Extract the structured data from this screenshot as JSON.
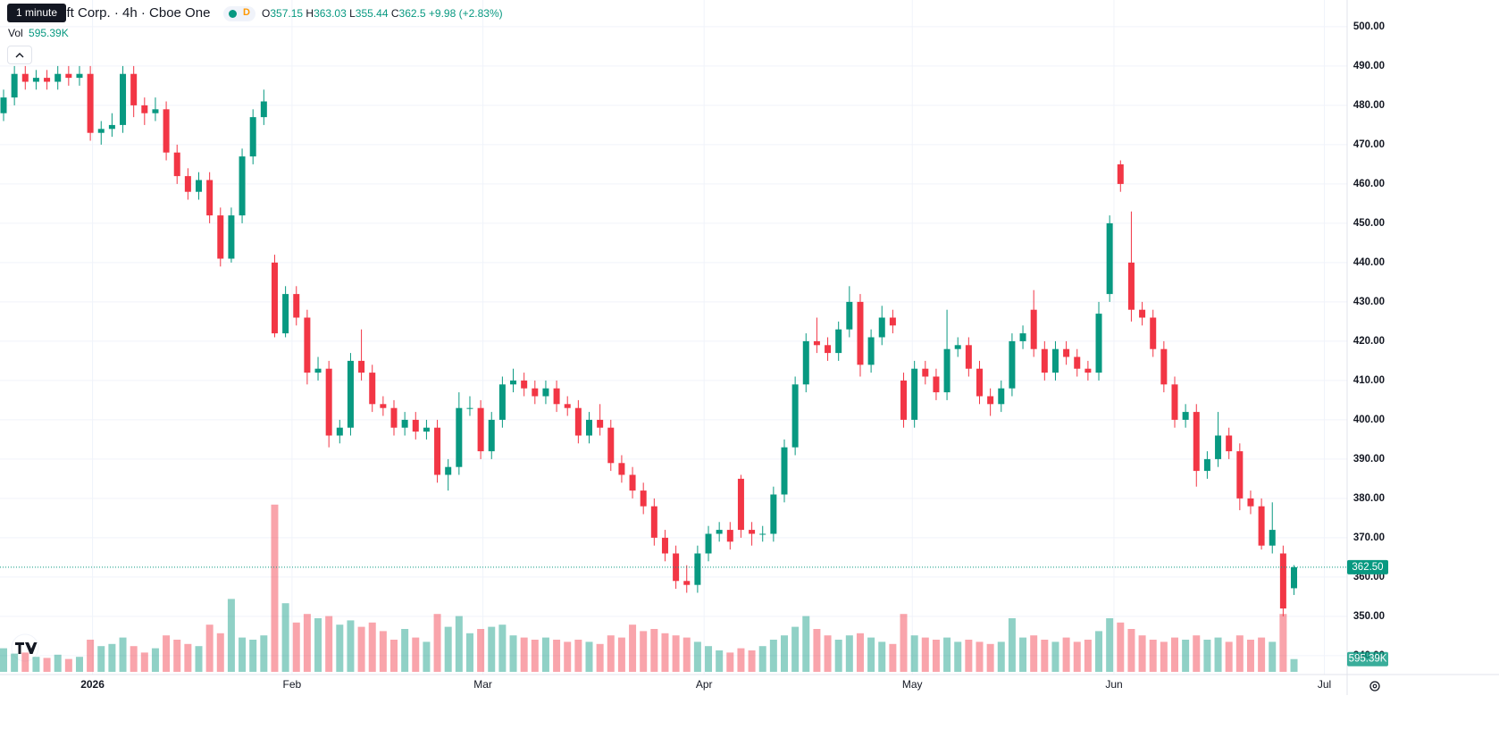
{
  "chart_data": {
    "type": "candlestick",
    "title": "Microsoft Corp. · 4h · Cboe One",
    "tooltip": "1 minute",
    "data_badge": "D",
    "ohlc_labels": [
      "O",
      "H",
      "L",
      "C"
    ],
    "change_label": "+9.98 (+2.83%)",
    "volume_label": "Vol",
    "volume_value": {
      "value": 595390,
      "label": "595.39K"
    },
    "last_price": {
      "value": 362.5,
      "label": "362.50"
    },
    "up_color": "#089981",
    "down_color": "#f23645",
    "grid": true,
    "xlim": [
      -0.33,
      123.9
    ],
    "ylim": [
      335.2,
      506.8
    ],
    "vlim": [
      0,
      10000000
    ],
    "xticks": [
      {
        "value": 8.2,
        "label": "2026"
      },
      {
        "value": 26.6,
        "label": "Feb"
      },
      {
        "value": 44.2,
        "label": "Mar"
      },
      {
        "value": 64.6,
        "label": "Apr"
      },
      {
        "value": 83.8,
        "label": "May"
      },
      {
        "value": 102.4,
        "label": "Jun"
      },
      {
        "value": 121.8,
        "label": "Jul"
      }
    ],
    "yticks": [
      {
        "value": 340,
        "label": "340.00"
      },
      {
        "value": 350,
        "label": "350.00"
      },
      {
        "value": 360,
        "label": "360.00"
      },
      {
        "value": 370,
        "label": "370.00"
      },
      {
        "value": 380,
        "label": "380.00"
      },
      {
        "value": 390,
        "label": "390.00"
      },
      {
        "value": 400,
        "label": "400.00"
      },
      {
        "value": 410,
        "label": "410.00"
      },
      {
        "value": 420,
        "label": "420.00"
      },
      {
        "value": 430,
        "label": "430.00"
      },
      {
        "value": 440,
        "label": "440.00"
      },
      {
        "value": 450,
        "label": "450.00"
      },
      {
        "value": 460,
        "label": "460.00"
      },
      {
        "value": 470,
        "label": "470.00"
      },
      {
        "value": 480,
        "label": "480.00"
      },
      {
        "value": 490,
        "label": "490.00"
      },
      {
        "value": 500,
        "label": "500.00"
      }
    ],
    "open": [
      478,
      482,
      488,
      486,
      487,
      486,
      488,
      487,
      488,
      473,
      474,
      475,
      488,
      480,
      478,
      479,
      468,
      462,
      458,
      461,
      452,
      441,
      452,
      467,
      477,
      440,
      422,
      432,
      426,
      412,
      413,
      396,
      398,
      415,
      412,
      404,
      403,
      398,
      400,
      397,
      398,
      386,
      388,
      403,
      403,
      392,
      400,
      409,
      410,
      408,
      406,
      408,
      404,
      403,
      396,
      400,
      398,
      389,
      386,
      382,
      378,
      370,
      366,
      359,
      358,
      366,
      371,
      372,
      385,
      372,
      371,
      371,
      381,
      393,
      409,
      420,
      419,
      417,
      423,
      430,
      414,
      421,
      426,
      410,
      400,
      413,
      411,
      407,
      418,
      419,
      413,
      406,
      404,
      408,
      420,
      428,
      418,
      412,
      418,
      416,
      413,
      412,
      432,
      465,
      440,
      428,
      426,
      418,
      409,
      400,
      402,
      387,
      390,
      396,
      392,
      380,
      378,
      368,
      366,
      357.15
    ],
    "high": [
      484,
      490,
      490,
      489,
      489,
      490,
      490,
      490,
      490,
      476,
      478,
      490,
      490,
      482,
      482,
      481,
      470,
      464,
      463,
      463,
      454,
      454,
      469,
      479,
      484,
      442,
      434,
      434,
      428,
      416,
      415,
      400,
      417,
      423,
      414,
      406,
      405,
      402,
      402,
      400,
      400,
      390,
      407,
      406,
      405,
      402,
      411,
      413,
      412,
      410,
      410,
      410,
      406,
      405,
      402,
      404,
      400,
      391,
      388,
      384,
      380,
      372,
      368,
      363,
      368,
      373,
      374,
      374,
      386,
      374,
      373,
      383,
      395,
      411,
      422,
      426,
      421,
      425,
      434,
      432,
      423,
      429,
      428,
      412,
      415,
      415,
      413,
      428,
      421,
      421,
      415,
      408,
      410,
      422,
      424,
      433,
      420,
      420,
      420,
      418,
      415,
      430,
      452,
      466,
      453,
      430,
      428,
      420,
      411,
      404,
      404,
      392,
      402,
      398,
      394,
      382,
      380,
      379,
      368,
      363.03
    ],
    "low": [
      476,
      480,
      484,
      484,
      484,
      484,
      485,
      485,
      471,
      470,
      472,
      473,
      477,
      475,
      476,
      466,
      460,
      456,
      456,
      450,
      439,
      440,
      450,
      465,
      475,
      421,
      421,
      424,
      409,
      410,
      393,
      394,
      396,
      410,
      402,
      401,
      396,
      396,
      395,
      395,
      384,
      382,
      386,
      401,
      390,
      390,
      398,
      407,
      406,
      404,
      404,
      402,
      401,
      394,
      394,
      396,
      387,
      384,
      380,
      376,
      368,
      364,
      357,
      356,
      356,
      364,
      369,
      367,
      370,
      368,
      369,
      369,
      379,
      391,
      407,
      417,
      415,
      415,
      421,
      411,
      412,
      419,
      422,
      398,
      398,
      409,
      405,
      405,
      416,
      411,
      404,
      401,
      402,
      406,
      418,
      416,
      410,
      410,
      414,
      411,
      410,
      410,
      430,
      458,
      425,
      424,
      416,
      407,
      398,
      398,
      383,
      385,
      388,
      390,
      377,
      376,
      367,
      366,
      350,
      355.44
    ],
    "close": [
      482,
      488,
      486,
      487,
      486,
      488,
      487,
      488,
      473,
      474,
      475,
      488,
      480,
      478,
      479,
      468,
      462,
      458,
      461,
      452,
      441,
      452,
      467,
      477,
      481,
      422,
      432,
      426,
      412,
      413,
      396,
      398,
      415,
      412,
      404,
      403,
      398,
      400,
      397,
      398,
      386,
      388,
      403,
      403,
      392,
      400,
      409,
      410,
      408,
      406,
      408,
      404,
      403,
      396,
      400,
      398,
      389,
      386,
      382,
      378,
      370,
      366,
      359,
      358,
      366,
      371,
      372,
      369,
      372,
      371,
      371,
      381,
      393,
      409,
      420,
      419,
      417,
      423,
      430,
      414,
      421,
      426,
      424,
      400,
      413,
      411,
      407,
      418,
      419,
      413,
      406,
      404,
      408,
      420,
      422,
      418,
      412,
      418,
      416,
      413,
      412,
      427,
      450,
      460,
      428,
      426,
      418,
      409,
      400,
      402,
      387,
      390,
      396,
      392,
      380,
      378,
      368,
      372,
      352,
      362.5
    ],
    "volume": [
      1100000,
      850000,
      900000,
      700000,
      650000,
      800000,
      600000,
      700000,
      1500000,
      1200000,
      1300000,
      1600000,
      1200000,
      900000,
      1100000,
      1700000,
      1500000,
      1300000,
      1200000,
      2200000,
      1800000,
      3400000,
      1600000,
      1500000,
      1700000,
      7800000,
      3200000,
      2300000,
      2700000,
      2500000,
      2600000,
      2200000,
      2400000,
      2100000,
      2300000,
      1900000,
      1500000,
      2000000,
      1600000,
      1400000,
      2700000,
      2100000,
      2600000,
      1800000,
      2000000,
      2100000,
      2200000,
      1700000,
      1600000,
      1500000,
      1600000,
      1500000,
      1400000,
      1500000,
      1400000,
      1300000,
      1700000,
      1600000,
      2200000,
      1900000,
      2000000,
      1800000,
      1700000,
      1600000,
      1400000,
      1200000,
      1000000,
      900000,
      1100000,
      1000000,
      1200000,
      1500000,
      1700000,
      2100000,
      2600000,
      2000000,
      1700000,
      1500000,
      1700000,
      1800000,
      1600000,
      1400000,
      1300000,
      2700000,
      1700000,
      1600000,
      1500000,
      1600000,
      1400000,
      1500000,
      1400000,
      1300000,
      1400000,
      2500000,
      1600000,
      1700000,
      1500000,
      1400000,
      1600000,
      1400000,
      1500000,
      1900000,
      2500000,
      2300000,
      2000000,
      1700000,
      1500000,
      1400000,
      1600000,
      1500000,
      1700000,
      1500000,
      1600000,
      1400000,
      1700000,
      1500000,
      1600000,
      1400000,
      2700000,
      595390
    ]
  }
}
